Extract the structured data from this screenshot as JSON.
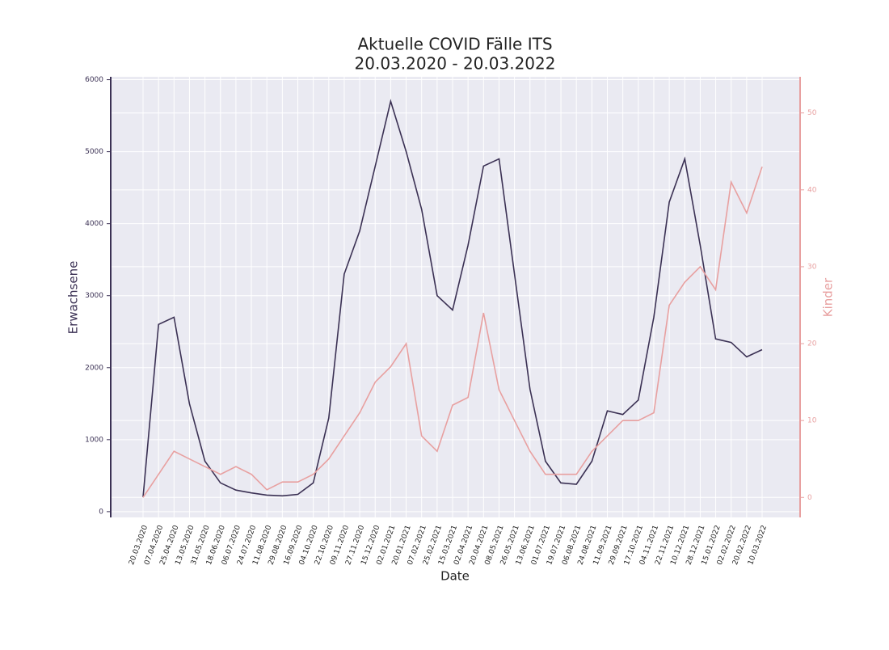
{
  "chart_data": {
    "type": "line",
    "title": "Aktuelle COVID Fälle ITS",
    "subtitle": "20.03.2020 - 20.03.2022",
    "x_label": "Date",
    "y_label": "Erwachsene",
    "y2_label": "Kinder",
    "categories": [
      "20.03.2020",
      "07.04.2020",
      "25.04.2020",
      "13.05.2020",
      "31.05.2020",
      "18.06.2020",
      "06.07.2020",
      "24.07.2020",
      "11.08.2020",
      "29.08.2020",
      "16.09.2020",
      "04.10.2020",
      "22.10.2020",
      "09.11.2020",
      "27.11.2020",
      "15.12.2020",
      "02.01.2021",
      "20.01.2021",
      "07.02.2021",
      "25.02.2021",
      "15.03.2021",
      "02.04.2021",
      "20.04.2021",
      "08.05.2021",
      "26.05.2021",
      "13.06.2021",
      "01.07.2021",
      "19.07.2021",
      "06.08.2021",
      "24.08.2021",
      "11.09.2021",
      "29.09.2021",
      "17.10.2021",
      "04.11.2021",
      "22.11.2021",
      "10.12.2021",
      "28.12.2021",
      "15.01.2022",
      "02.02.2022",
      "20.02.2022",
      "10.03.2022"
    ],
    "series": [
      {
        "name": "Erwachsene",
        "color": "#3b3154",
        "axis": "y",
        "values": [
          200,
          2600,
          2700,
          1500,
          700,
          400,
          300,
          260,
          230,
          220,
          240,
          400,
          1300,
          3300,
          3900,
          4800,
          5700,
          5000,
          4200,
          3000,
          2800,
          3700,
          4800,
          4900,
          3300,
          1700,
          700,
          400,
          380,
          700,
          1400,
          1350,
          1550,
          2700,
          4300,
          4900,
          3700,
          2400,
          2350,
          2150,
          2250
        ]
      },
      {
        "name": "Kinder",
        "color": "#e8a0a0",
        "axis": "y2",
        "values": [
          0,
          3,
          6,
          5,
          4,
          3,
          4,
          3,
          1,
          2,
          2,
          3,
          5,
          8,
          11,
          15,
          17,
          20,
          8,
          6,
          12,
          13,
          24,
          14,
          10,
          6,
          3,
          3,
          3,
          6,
          8,
          10,
          10,
          11,
          25,
          28,
          30,
          27,
          41,
          37,
          43
        ]
      }
    ],
    "ylim": [
      -80,
      6040
    ],
    "yticks": [
      0,
      1000,
      2000,
      3000,
      4000,
      5000,
      6000
    ],
    "y2lim": [
      -2.6,
      54.7
    ],
    "y2ticks": [
      0,
      10,
      20,
      30,
      40,
      50
    ],
    "grid": true
  }
}
